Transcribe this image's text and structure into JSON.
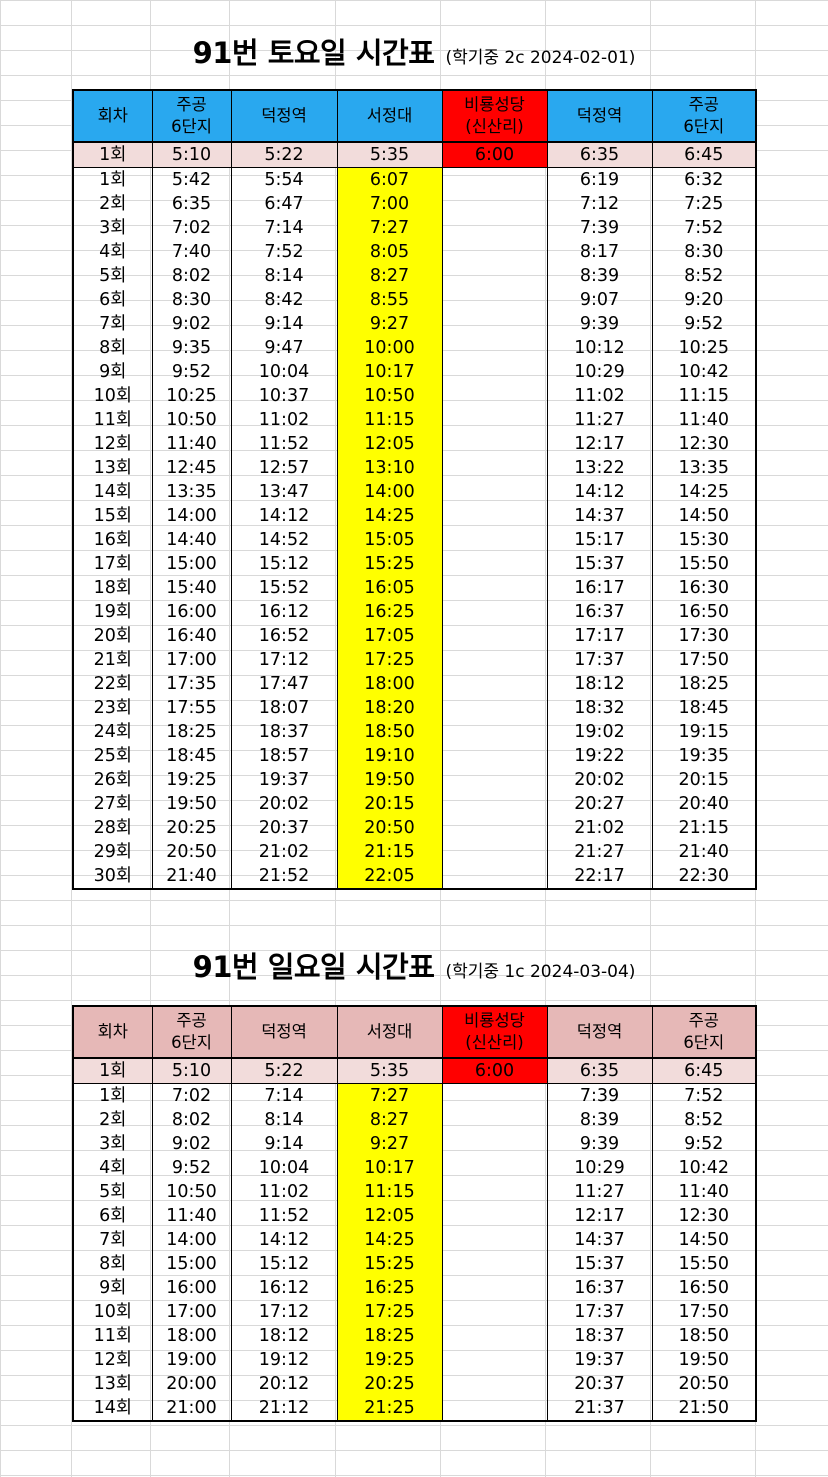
{
  "saturday": {
    "title": "91번 토요일 시간표",
    "subtitle": "(학기중 2c 2024-02-01)",
    "headers": [
      "회차",
      "주공\n6단지",
      "덕정역",
      "서정대",
      "비룡성당\n(신산리)",
      "덕정역",
      "주공\n6단지"
    ],
    "rows": [
      [
        "1회",
        "5:10",
        "5:22",
        "5:35",
        "6:00",
        "6:35",
        "6:45"
      ],
      [
        "1회",
        "5:42",
        "5:54",
        "6:07",
        "",
        "6:19",
        "6:32"
      ],
      [
        "2회",
        "6:35",
        "6:47",
        "7:00",
        "",
        "7:12",
        "7:25"
      ],
      [
        "3회",
        "7:02",
        "7:14",
        "7:27",
        "",
        "7:39",
        "7:52"
      ],
      [
        "4회",
        "7:40",
        "7:52",
        "8:05",
        "",
        "8:17",
        "8:30"
      ],
      [
        "5회",
        "8:02",
        "8:14",
        "8:27",
        "",
        "8:39",
        "8:52"
      ],
      [
        "6회",
        "8:30",
        "8:42",
        "8:55",
        "",
        "9:07",
        "9:20"
      ],
      [
        "7회",
        "9:02",
        "9:14",
        "9:27",
        "",
        "9:39",
        "9:52"
      ],
      [
        "8회",
        "9:35",
        "9:47",
        "10:00",
        "",
        "10:12",
        "10:25"
      ],
      [
        "9회",
        "9:52",
        "10:04",
        "10:17",
        "",
        "10:29",
        "10:42"
      ],
      [
        "10회",
        "10:25",
        "10:37",
        "10:50",
        "",
        "11:02",
        "11:15"
      ],
      [
        "11회",
        "10:50",
        "11:02",
        "11:15",
        "",
        "11:27",
        "11:40"
      ],
      [
        "12회",
        "11:40",
        "11:52",
        "12:05",
        "",
        "12:17",
        "12:30"
      ],
      [
        "13회",
        "12:45",
        "12:57",
        "13:10",
        "",
        "13:22",
        "13:35"
      ],
      [
        "14회",
        "13:35",
        "13:47",
        "14:00",
        "",
        "14:12",
        "14:25"
      ],
      [
        "15회",
        "14:00",
        "14:12",
        "14:25",
        "",
        "14:37",
        "14:50"
      ],
      [
        "16회",
        "14:40",
        "14:52",
        "15:05",
        "",
        "15:17",
        "15:30"
      ],
      [
        "17회",
        "15:00",
        "15:12",
        "15:25",
        "",
        "15:37",
        "15:50"
      ],
      [
        "18회",
        "15:40",
        "15:52",
        "16:05",
        "",
        "16:17",
        "16:30"
      ],
      [
        "19회",
        "16:00",
        "16:12",
        "16:25",
        "",
        "16:37",
        "16:50"
      ],
      [
        "20회",
        "16:40",
        "16:52",
        "17:05",
        "",
        "17:17",
        "17:30"
      ],
      [
        "21회",
        "17:00",
        "17:12",
        "17:25",
        "",
        "17:37",
        "17:50"
      ],
      [
        "22회",
        "17:35",
        "17:47",
        "18:00",
        "",
        "18:12",
        "18:25"
      ],
      [
        "23회",
        "17:55",
        "18:07",
        "18:20",
        "",
        "18:32",
        "18:45"
      ],
      [
        "24회",
        "18:25",
        "18:37",
        "18:50",
        "",
        "19:02",
        "19:15"
      ],
      [
        "25회",
        "18:45",
        "18:57",
        "19:10",
        "",
        "19:22",
        "19:35"
      ],
      [
        "26회",
        "19:25",
        "19:37",
        "19:50",
        "",
        "20:02",
        "20:15"
      ],
      [
        "27회",
        "19:50",
        "20:02",
        "20:15",
        "",
        "20:27",
        "20:40"
      ],
      [
        "28회",
        "20:25",
        "20:37",
        "20:50",
        "",
        "21:02",
        "21:15"
      ],
      [
        "29회",
        "20:50",
        "21:02",
        "21:15",
        "",
        "21:27",
        "21:40"
      ],
      [
        "30회",
        "21:40",
        "21:52",
        "22:05",
        "",
        "22:17",
        "22:30"
      ]
    ]
  },
  "sunday": {
    "title": "91번 일요일 시간표",
    "subtitle": "(학기중 1c 2024-03-04)",
    "headers": [
      "회차",
      "주공\n6단지",
      "덕정역",
      "서정대",
      "비룡성당\n(신산리)",
      "덕정역",
      "주공\n6단지"
    ],
    "rows": [
      [
        "1회",
        "5:10",
        "5:22",
        "5:35",
        "6:00",
        "6:35",
        "6:45"
      ],
      [
        "1회",
        "7:02",
        "7:14",
        "7:27",
        "",
        "7:39",
        "7:52"
      ],
      [
        "2회",
        "8:02",
        "8:14",
        "8:27",
        "",
        "8:39",
        "8:52"
      ],
      [
        "3회",
        "9:02",
        "9:14",
        "9:27",
        "",
        "9:39",
        "9:52"
      ],
      [
        "4회",
        "9:52",
        "10:04",
        "10:17",
        "",
        "10:29",
        "10:42"
      ],
      [
        "5회",
        "10:50",
        "11:02",
        "11:15",
        "",
        "11:27",
        "11:40"
      ],
      [
        "6회",
        "11:40",
        "11:52",
        "12:05",
        "",
        "12:17",
        "12:30"
      ],
      [
        "7회",
        "14:00",
        "14:12",
        "14:25",
        "",
        "14:37",
        "14:50"
      ],
      [
        "8회",
        "15:00",
        "15:12",
        "15:25",
        "",
        "15:37",
        "15:50"
      ],
      [
        "9회",
        "16:00",
        "16:12",
        "16:25",
        "",
        "16:37",
        "16:50"
      ],
      [
        "10회",
        "17:00",
        "17:12",
        "17:25",
        "",
        "17:37",
        "17:50"
      ],
      [
        "11회",
        "18:00",
        "18:12",
        "18:25",
        "",
        "18:37",
        "18:50"
      ],
      [
        "12회",
        "19:00",
        "19:12",
        "19:25",
        "",
        "19:37",
        "19:50"
      ],
      [
        "13회",
        "20:00",
        "20:12",
        "20:25",
        "",
        "20:37",
        "20:50"
      ],
      [
        "14회",
        "21:00",
        "21:12",
        "21:25",
        "",
        "21:37",
        "21:50"
      ]
    ]
  },
  "colors": {
    "saturday_header": "#29a8ef",
    "sunday_header": "#e6b8b7",
    "highlight_red": "#ff0000",
    "highlight_yellow": "#ffff00",
    "first_row": "#f2dcdb"
  }
}
